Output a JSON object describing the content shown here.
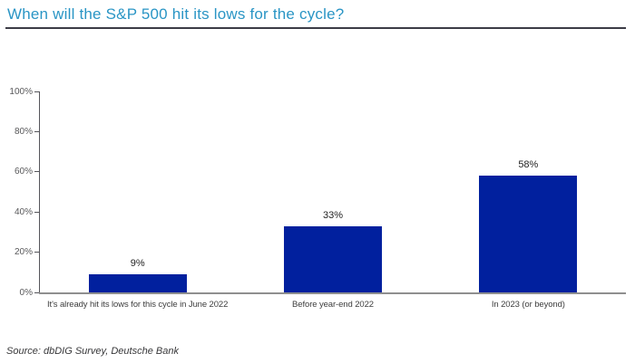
{
  "title": "When will the S&P 500 hit its lows for the cycle?",
  "source": "Source: dbDIG Survey, Deutsche Bank",
  "colors": {
    "title": "#2A95C5",
    "bar": "#01209E",
    "title_rule": "#3C3C46",
    "x_axis": "#8F8F8F",
    "y_axis": "#55555A"
  },
  "chart_data": {
    "type": "bar",
    "title": "When will the S&P 500 hit its lows for the cycle?",
    "categories": [
      "It's already hit its lows for this cycle in June 2022",
      "Before year-end 2022",
      "In 2023 (or beyond)"
    ],
    "values": [
      9,
      33,
      58
    ],
    "value_labels": [
      "9%",
      "33%",
      "58%"
    ],
    "xlabel": "",
    "ylabel": "",
    "ylim": [
      0,
      100
    ],
    "yticks": [
      0,
      20,
      40,
      60,
      80,
      100
    ],
    "ytick_labels": [
      "0%",
      "20%",
      "40%",
      "60%",
      "80%",
      "100%"
    ],
    "grid": false,
    "legend": false,
    "source": "Source: dbDIG Survey, Deutsche Bank"
  }
}
